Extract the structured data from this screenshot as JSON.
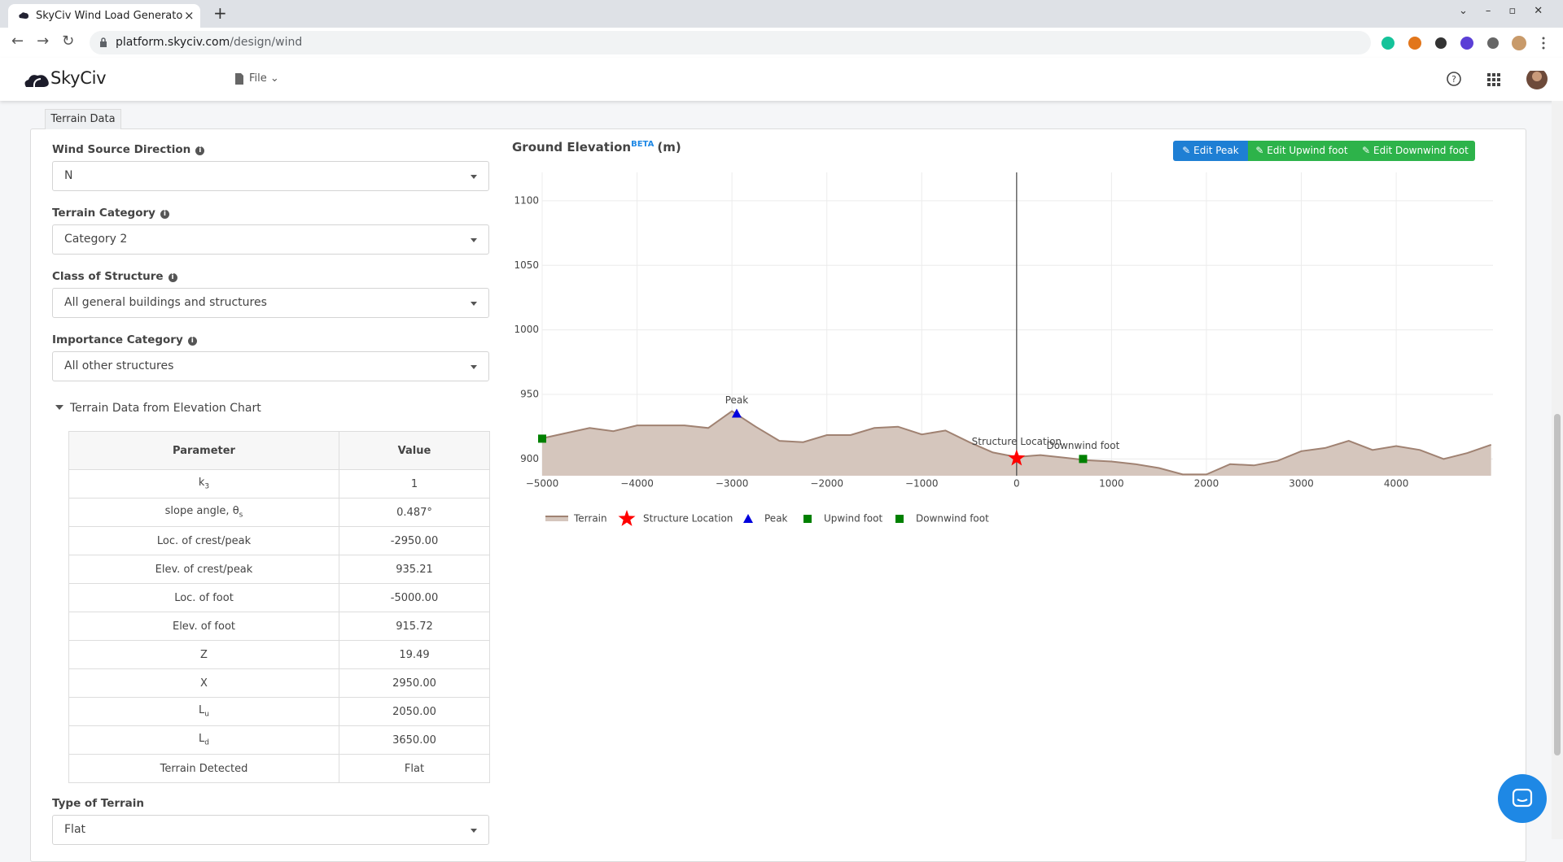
{
  "browser": {
    "tab_title": "SkyCiv Wind Load Generato",
    "url_host": "platform.skyciv.com",
    "url_path": "/design/wind"
  },
  "app_header": {
    "logo": "SkyCiv",
    "menu": "File"
  },
  "panel_tab": "Terrain Data",
  "fields": [
    {
      "label": "Wind Source Direction",
      "value": "N"
    },
    {
      "label": "Terrain Category",
      "value": "Category 2"
    },
    {
      "label": "Class of Structure",
      "value": "All general buildings and structures"
    },
    {
      "label": "Importance Category",
      "value": "All other structures"
    }
  ],
  "terrain_section": {
    "title": "Terrain Data from Elevation Chart",
    "table": {
      "headers": [
        "Parameter",
        "Value"
      ],
      "rows": [
        {
          "label": "k",
          "sub": "3",
          "value": "1"
        },
        {
          "label": "slope angle, θ",
          "sub": "s",
          "value": "0.487°"
        },
        {
          "label": "Loc. of crest/peak",
          "value": "-2950.00"
        },
        {
          "label": "Elev. of crest/peak",
          "value": "935.21"
        },
        {
          "label": "Loc. of foot",
          "value": "-5000.00"
        },
        {
          "label": "Elev. of foot",
          "value": "915.72"
        },
        {
          "label": "Z",
          "value": "19.49"
        },
        {
          "label": "X",
          "value": "2950.00"
        },
        {
          "label": "L",
          "sub": "u",
          "value": "2050.00"
        },
        {
          "label": "L",
          "sub": "d",
          "value": "3650.00"
        },
        {
          "label": "Terrain Detected",
          "value": "Flat"
        }
      ]
    }
  },
  "type_of_terrain": {
    "label": "Type of Terrain",
    "value": "Flat"
  },
  "chart_header": {
    "title": "Ground Elevation",
    "superscript": "BETA",
    "unit": "(m)",
    "buttons": [
      "Edit Peak",
      "Edit Upwind foot",
      "Edit Downwind foot"
    ]
  },
  "chart_data": {
    "type": "area",
    "xlim": [
      -5000,
      5020
    ],
    "ylim": [
      887,
      1122
    ],
    "xticks": [
      {
        "value": -5000,
        "label": "−5000"
      },
      {
        "value": -4000,
        "label": "−4000"
      },
      {
        "value": -3000,
        "label": "−3000"
      },
      {
        "value": -2000,
        "label": "−2000"
      },
      {
        "value": -1000,
        "label": "−1000"
      },
      0,
      1000,
      2000,
      3000,
      4000
    ],
    "yticks": [
      900,
      950,
      1000,
      1050,
      1100
    ],
    "grid": true,
    "legend": "bottom",
    "series": [
      {
        "name": "Terrain",
        "color": "#a08272",
        "fill": "#d5c6bd",
        "x": [
          -5000,
          -4750,
          -4500,
          -4250,
          -4000,
          -3750,
          -3500,
          -3250,
          -3000,
          -2750,
          -2500,
          -2250,
          -2000,
          -1750,
          -1500,
          -1250,
          -1000,
          -750,
          -500,
          -250,
          0,
          250,
          500,
          750,
          1000,
          1250,
          1500,
          1750,
          2000,
          2250,
          2500,
          2750,
          3000,
          3250,
          3500,
          3750,
          4000,
          4250,
          4500,
          4750,
          5000
        ],
        "values": [
          916,
          920,
          924,
          921.5,
          926,
          926,
          926,
          924,
          937,
          925,
          914,
          913,
          918.5,
          918.5,
          924,
          925,
          919,
          922,
          913,
          905,
          901.5,
          903,
          901,
          899,
          898,
          896,
          893,
          888,
          888,
          896,
          895,
          898.5,
          906,
          908.5,
          914,
          907,
          910,
          907,
          900,
          904.6,
          911
        ]
      },
      {
        "name": "Structure Location",
        "color": "#ff0000",
        "marker": "star",
        "labeled": true,
        "x": [
          0
        ],
        "values": [
          900.5
        ]
      },
      {
        "name": "Peak",
        "color": "#0000dd",
        "marker": "triangle",
        "labeled": true,
        "x": [
          -2950
        ],
        "values": [
          935.21
        ]
      },
      {
        "name": "Upwind foot",
        "color": "#008000",
        "marker": "square",
        "x": [
          -5000
        ],
        "values": [
          915.72
        ]
      },
      {
        "name": "Downwind foot",
        "color": "#008000",
        "marker": "square",
        "labeled": true,
        "x": [
          700
        ],
        "values": [
          900
        ]
      }
    ]
  }
}
